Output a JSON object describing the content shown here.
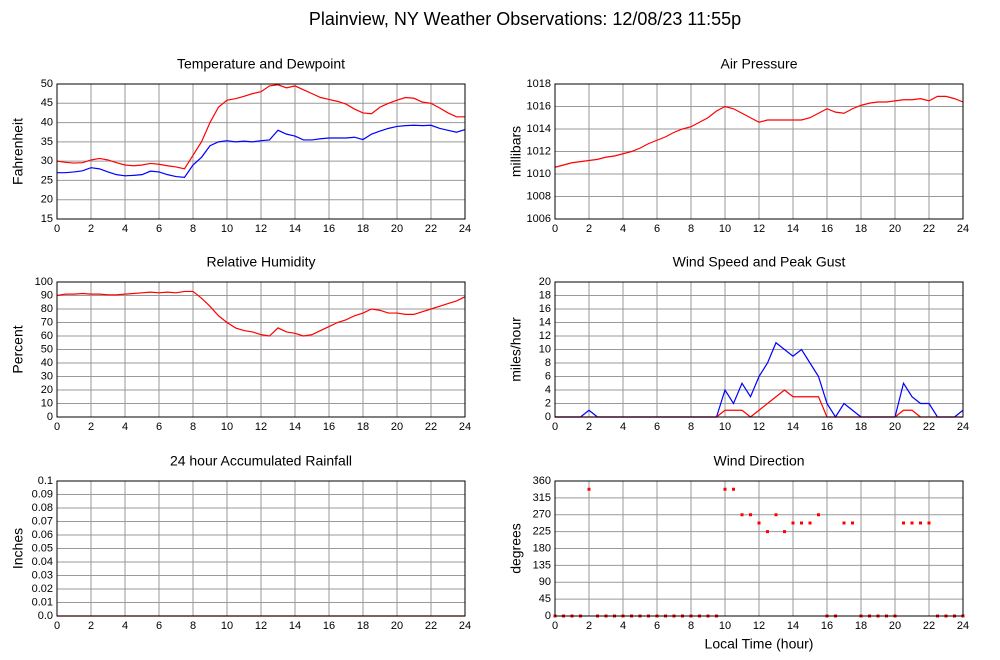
{
  "title": "Plainview, NY Weather Observations: 12/08/23 11:55p",
  "chart_data": [
    {
      "type": "line",
      "title": "Temperature and Dewpoint",
      "y_label": "Fahrenheit",
      "grid": true,
      "xlim": [
        0,
        24
      ],
      "xticks": [
        0,
        2,
        4,
        6,
        8,
        10,
        12,
        14,
        16,
        18,
        20,
        22,
        24
      ],
      "ylim": [
        15,
        50
      ],
      "yticks": [
        15,
        20,
        25,
        30,
        35,
        40,
        45,
        50
      ],
      "x": [
        0,
        0.5,
        1,
        1.5,
        2,
        2.5,
        3,
        3.5,
        4,
        4.5,
        5,
        5.5,
        6,
        6.5,
        7,
        7.5,
        8,
        8.5,
        9,
        9.5,
        10,
        10.5,
        11,
        11.5,
        12,
        12.5,
        13,
        13.5,
        14,
        14.5,
        15,
        15.5,
        16,
        16.5,
        17,
        17.5,
        18,
        18.5,
        19,
        19.5,
        20,
        20.5,
        21,
        21.5,
        22,
        22.5,
        23,
        23.5,
        24
      ],
      "series": [
        {
          "color": "#ff0000",
          "values": [
            30,
            29.7,
            29.5,
            29.6,
            30.3,
            30.7,
            30.3,
            29.6,
            29,
            28.8,
            29,
            29.4,
            29.2,
            28.8,
            28.5,
            28,
            31.5,
            35,
            40,
            44,
            45.8,
            46.2,
            46.8,
            47.5,
            48,
            49.5,
            49.8,
            49,
            49.5,
            48.5,
            47.5,
            46.5,
            46,
            45.5,
            44.8,
            43.5,
            42.5,
            42.3,
            44,
            45,
            45.8,
            46.5,
            46.3,
            45.3,
            45,
            43.8,
            42.5,
            41.5,
            41.5
          ]
        },
        {
          "color": "#0000ff",
          "values": [
            27,
            27,
            27.2,
            27.5,
            28.3,
            28,
            27.2,
            26.5,
            26.2,
            26.3,
            26.5,
            27.4,
            27.2,
            26.5,
            26,
            25.8,
            29,
            31,
            34,
            35,
            35.3,
            35,
            35.2,
            35,
            35.3,
            35.5,
            38,
            37,
            36.5,
            35.5,
            35.5,
            35.8,
            36,
            36,
            36,
            36.2,
            35.6,
            37,
            37.8,
            38.5,
            39,
            39.2,
            39.3,
            39.2,
            39.3,
            38.5,
            38,
            37.5,
            38.2
          ]
        }
      ]
    },
    {
      "type": "line",
      "title": "Air Pressure",
      "y_label": "millibars",
      "grid": true,
      "xlim": [
        0,
        24
      ],
      "xticks": [
        0,
        2,
        4,
        6,
        8,
        10,
        12,
        14,
        16,
        18,
        20,
        22,
        24
      ],
      "ylim": [
        1006,
        1018
      ],
      "yticks": [
        1006,
        1008,
        1010,
        1012,
        1014,
        1016,
        1018
      ],
      "x": [
        0,
        0.5,
        1,
        1.5,
        2,
        2.5,
        3,
        3.5,
        4,
        4.5,
        5,
        5.5,
        6,
        6.5,
        7,
        7.5,
        8,
        8.5,
        9,
        9.5,
        10,
        10.5,
        11,
        11.5,
        12,
        12.5,
        13,
        13.5,
        14,
        14.5,
        15,
        15.5,
        16,
        16.5,
        17,
        17.5,
        18,
        18.5,
        19,
        19.5,
        20,
        20.5,
        21,
        21.5,
        22,
        22.5,
        23,
        23.5,
        24
      ],
      "series": [
        {
          "color": "#ff0000",
          "values": [
            1010.6,
            1010.8,
            1011,
            1011.1,
            1011.2,
            1011.3,
            1011.5,
            1011.6,
            1011.8,
            1012,
            1012.3,
            1012.7,
            1013,
            1013.3,
            1013.7,
            1014,
            1014.2,
            1014.6,
            1015,
            1015.6,
            1016,
            1015.8,
            1015.4,
            1015,
            1014.6,
            1014.8,
            1014.8,
            1014.8,
            1014.8,
            1014.8,
            1015,
            1015.4,
            1015.8,
            1015.5,
            1015.4,
            1015.8,
            1016.1,
            1016.3,
            1016.4,
            1016.4,
            1016.5,
            1016.6,
            1016.6,
            1016.7,
            1016.5,
            1016.9,
            1016.9,
            1016.7,
            1016.4
          ]
        }
      ]
    },
    {
      "type": "line",
      "title": "Relative Humidity",
      "y_label": "Percent",
      "grid": true,
      "xlim": [
        0,
        24
      ],
      "xticks": [
        0,
        2,
        4,
        6,
        8,
        10,
        12,
        14,
        16,
        18,
        20,
        22,
        24
      ],
      "ylim": [
        0,
        100
      ],
      "yticks": [
        0,
        10,
        20,
        30,
        40,
        50,
        60,
        70,
        80,
        90,
        100
      ],
      "x": [
        0,
        0.5,
        1,
        1.5,
        2,
        2.5,
        3,
        3.5,
        4,
        4.5,
        5,
        5.5,
        6,
        6.5,
        7,
        7.5,
        8,
        8.5,
        9,
        9.5,
        10,
        10.5,
        11,
        11.5,
        12,
        12.5,
        13,
        13.5,
        14,
        14.5,
        15,
        15.5,
        16,
        16.5,
        17,
        17.5,
        18,
        18.5,
        19,
        19.5,
        20,
        20.5,
        21,
        21.5,
        22,
        22.5,
        23,
        23.5,
        24
      ],
      "series": [
        {
          "color": "#ff0000",
          "values": [
            90,
            91,
            91,
            91.5,
            91,
            91,
            90.5,
            90.5,
            91,
            91.5,
            92,
            92.5,
            92,
            92.5,
            92,
            93,
            93,
            88,
            82,
            75,
            70,
            66,
            64,
            63,
            61,
            60,
            66,
            63,
            62,
            60,
            61,
            64,
            67,
            70,
            72,
            75,
            77,
            80,
            79,
            77,
            77,
            76,
            76,
            78,
            80,
            82,
            84,
            86,
            89
          ]
        }
      ]
    },
    {
      "type": "line",
      "title": "Wind Speed and Peak Gust",
      "y_label": "miles/hour",
      "grid": true,
      "xlim": [
        0,
        24
      ],
      "xticks": [
        0,
        2,
        4,
        6,
        8,
        10,
        12,
        14,
        16,
        18,
        20,
        22,
        24
      ],
      "ylim": [
        0,
        20
      ],
      "yticks": [
        0,
        2,
        4,
        6,
        8,
        10,
        12,
        14,
        16,
        18,
        20
      ],
      "x": [
        0,
        0.5,
        1,
        1.5,
        2,
        2.5,
        3,
        3.5,
        4,
        4.5,
        5,
        5.5,
        6,
        6.5,
        7,
        7.5,
        8,
        8.5,
        9,
        9.5,
        10,
        10.5,
        11,
        11.5,
        12,
        12.5,
        13,
        13.5,
        14,
        14.5,
        15,
        15.5,
        16,
        16.5,
        17,
        17.5,
        18,
        18.5,
        19,
        19.5,
        20,
        20.5,
        21,
        21.5,
        22,
        22.5,
        23,
        23.5,
        24
      ],
      "series": [
        {
          "color": "#0000ff",
          "values": [
            0,
            0,
            0,
            0,
            1,
            0,
            0,
            0,
            0,
            0,
            0,
            0,
            0,
            0,
            0,
            0,
            0,
            0,
            0,
            0,
            4,
            2,
            5,
            3,
            6,
            8,
            11,
            10,
            9,
            10,
            8,
            6,
            2,
            0,
            2,
            1,
            0,
            0,
            0,
            0,
            0,
            5,
            3,
            2,
            2,
            0,
            0,
            0,
            1
          ]
        },
        {
          "color": "#ff0000",
          "values": [
            0,
            0,
            0,
            0,
            0,
            0,
            0,
            0,
            0,
            0,
            0,
            0,
            0,
            0,
            0,
            0,
            0,
            0,
            0,
            0,
            1,
            1,
            1,
            0,
            1,
            2,
            3,
            4,
            3,
            3,
            3,
            3,
            0,
            0,
            0,
            0,
            0,
            0,
            0,
            0,
            0,
            1,
            1,
            0,
            0,
            0,
            0,
            0,
            0
          ]
        }
      ]
    },
    {
      "type": "line",
      "title": "24 hour Accumulated Rainfall",
      "y_label": "Inches",
      "grid": true,
      "xlim": [
        0,
        24
      ],
      "xticks": [
        0,
        2,
        4,
        6,
        8,
        10,
        12,
        14,
        16,
        18,
        20,
        22,
        24
      ],
      "ylim": [
        0,
        0.1
      ],
      "yticks": [
        {
          "value": 0,
          "label": "0.0"
        },
        0.01,
        0.02,
        0.03,
        0.04,
        0.05,
        0.06,
        0.07,
        0.08,
        0.09,
        0.1
      ],
      "x": [
        0,
        24
      ],
      "series": [
        {
          "color": "#ff0000",
          "values": [
            0,
            0
          ]
        }
      ]
    },
    {
      "type": "scatter",
      "title": "Wind Direction",
      "y_label": "degrees",
      "x_label": "Local Time (hour)",
      "grid": true,
      "xlim": [
        0,
        24
      ],
      "xticks": [
        0,
        2,
        4,
        6,
        8,
        10,
        12,
        14,
        16,
        18,
        20,
        22,
        24
      ],
      "ylim": [
        0,
        360
      ],
      "yticks": [
        0,
        45,
        90,
        135,
        180,
        225,
        270,
        315,
        360
      ],
      "color": "#ff0000",
      "x": [
        0,
        0.5,
        1,
        1.5,
        2,
        2.5,
        3,
        3.5,
        4,
        4.5,
        5,
        5.5,
        6,
        6.5,
        7,
        7.5,
        8,
        8.5,
        9,
        9.5,
        10,
        10.5,
        11,
        11.5,
        12,
        12.5,
        13,
        13.5,
        14,
        14.5,
        15,
        15.5,
        16,
        16.5,
        17,
        17.5,
        18,
        18.5,
        19,
        19.5,
        20,
        20.5,
        21,
        21.5,
        22,
        22.5,
        23,
        23.5,
        24
      ],
      "values": [
        0,
        0,
        0,
        0,
        338,
        0,
        0,
        0,
        0,
        0,
        0,
        0,
        0,
        0,
        0,
        0,
        0,
        0,
        0,
        0,
        338,
        338,
        270,
        270,
        248,
        225,
        270,
        225,
        248,
        248,
        248,
        270,
        0,
        0,
        248,
        248,
        0,
        0,
        0,
        0,
        0,
        248,
        248,
        248,
        248,
        0,
        0,
        0,
        0
      ]
    }
  ]
}
